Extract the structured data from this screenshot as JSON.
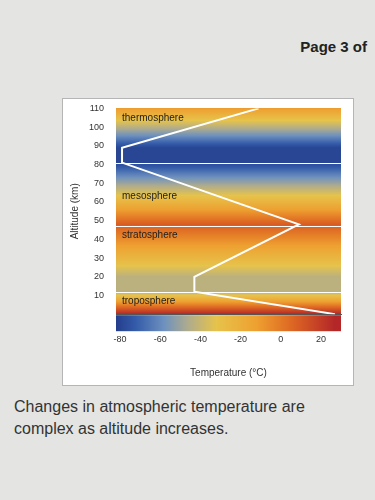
{
  "page": {
    "header": "Page 3 of",
    "caption": "Changes in atmospheric temperature are complex as altitude increases."
  },
  "chart_data": {
    "type": "line",
    "x_label": "Temperature (°C)",
    "y_label": "Altitude (km)",
    "x": [
      27,
      -43,
      -43,
      9,
      -79,
      -79,
      -11
    ],
    "values": [
      0,
      12,
      20,
      48,
      81,
      89,
      110
    ],
    "color": "#ffffff",
    "xlim": [
      -82,
      30
    ],
    "xticks": [
      -80,
      -60,
      -40,
      -20,
      0,
      20
    ],
    "ylim": [
      0,
      110
    ],
    "yticks": [
      10,
      20,
      30,
      40,
      50,
      60,
      70,
      80,
      90,
      100,
      110
    ],
    "layer_boundaries": [
      12,
      47,
      81
    ],
    "annotations": [
      {
        "text": "thermosphere",
        "y": 105
      },
      {
        "text": "mesosphere",
        "y": 63
      },
      {
        "text": "stratosphere",
        "y": 42
      },
      {
        "text": "troposphere",
        "y": 7
      }
    ],
    "grid": false
  }
}
